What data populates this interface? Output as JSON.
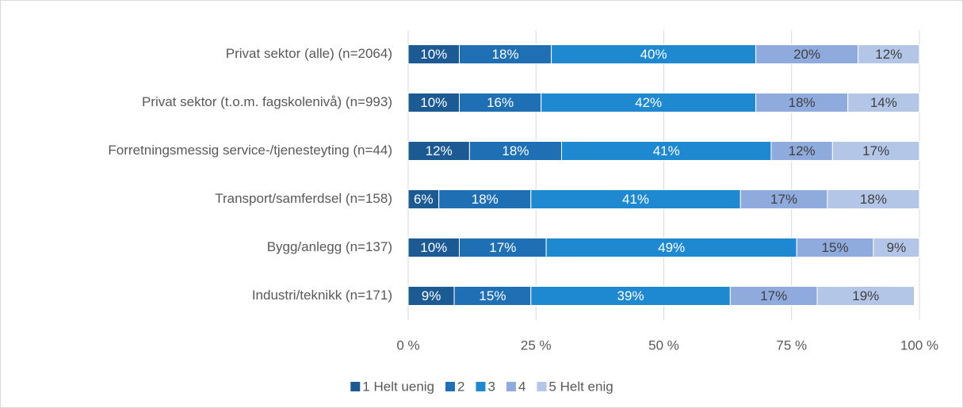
{
  "chart_data": {
    "type": "stacked-bar-horizontal",
    "categories": [
      "Privat sektor (alle) (n=2064)",
      "Privat sektor (t.o.m. fagskolenivå) (n=993)",
      "Forretningsmessig service-/tjenesteyting (n=44)",
      "Transport/samferdsel (n=158)",
      "Bygg/anlegg (n=137)",
      "Industri/teknikk (n=171)"
    ],
    "series": [
      {
        "name": "1 Helt uenig",
        "color": "#1c5a93",
        "label_color": "#ffffff",
        "values": [
          10,
          10,
          12,
          6,
          10,
          9
        ],
        "value_labels": [
          "10%",
          "10%",
          "12%",
          "6%",
          "10%",
          "9%"
        ]
      },
      {
        "name": "2",
        "color": "#1f6fb5",
        "label_color": "#ffffff",
        "values": [
          18,
          16,
          18,
          18,
          17,
          15
        ],
        "value_labels": [
          "18%",
          "16%",
          "18%",
          "18%",
          "17%",
          "15%"
        ]
      },
      {
        "name": "3",
        "color": "#1e88d0",
        "label_color": "#ffffff",
        "values": [
          40,
          42,
          41,
          41,
          49,
          39
        ],
        "value_labels": [
          "40%",
          "42%",
          "41%",
          "41%",
          "49%",
          "39%"
        ]
      },
      {
        "name": "4",
        "color": "#8faadc",
        "label_color": "#404040",
        "values": [
          20,
          18,
          12,
          17,
          15,
          17
        ],
        "value_labels": [
          "20%",
          "18%",
          "12%",
          "17%",
          "15%",
          "17%"
        ]
      },
      {
        "name": "5 Helt enig",
        "color": "#b4c6e7",
        "label_color": "#404040",
        "values": [
          12,
          14,
          17,
          18,
          9,
          19
        ],
        "value_labels": [
          "12%",
          "14%",
          "17%",
          "18%",
          "9%",
          "19%"
        ]
      }
    ],
    "xlim": [
      0,
      100
    ],
    "xticks": [
      {
        "value": 0,
        "label": "0 %"
      },
      {
        "value": 25,
        "label": "25 %"
      },
      {
        "value": 50,
        "label": "50 %"
      },
      {
        "value": 75,
        "label": "75 %"
      },
      {
        "value": 100,
        "label": "100 %"
      }
    ],
    "grid": true,
    "legend": "bottom"
  }
}
